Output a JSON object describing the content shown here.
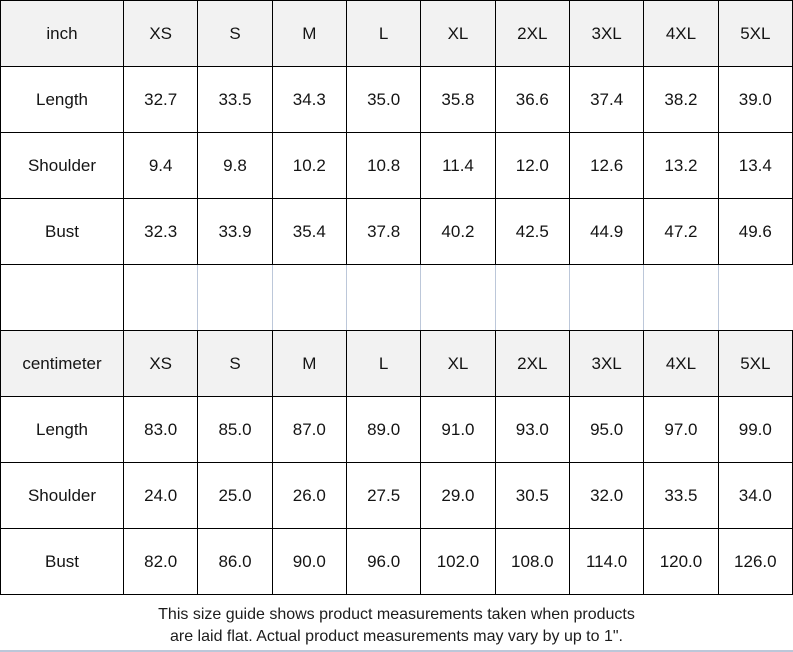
{
  "colors": {
    "header_bg": "#f2f2f2",
    "table_border": "#000000",
    "spacer_divider": "#bcc7d9",
    "page_bottom_line": "#bcc7d9",
    "text": "#141414"
  },
  "chart_data": {
    "type": "table",
    "column_headers": [
      "XS",
      "S",
      "M",
      "L",
      "XL",
      "2XL",
      "3XL",
      "4XL",
      "5XL"
    ],
    "sections": [
      {
        "unit": "inch",
        "rows": [
          {
            "label": "Length",
            "values": [
              "32.7",
              "33.5",
              "34.3",
              "35.0",
              "35.8",
              "36.6",
              "37.4",
              "38.2",
              "39.0"
            ]
          },
          {
            "label": "Shoulder",
            "values": [
              "9.4",
              "9.8",
              "10.2",
              "10.8",
              "11.4",
              "12.0",
              "12.6",
              "13.2",
              "13.4"
            ]
          },
          {
            "label": "Bust",
            "values": [
              "32.3",
              "33.9",
              "35.4",
              "37.8",
              "40.2",
              "42.5",
              "44.9",
              "47.2",
              "49.6"
            ]
          }
        ]
      },
      {
        "unit": "centimeter",
        "rows": [
          {
            "label": "Length",
            "values": [
              "83.0",
              "85.0",
              "87.0",
              "89.0",
              "91.0",
              "93.0",
              "95.0",
              "97.0",
              "99.0"
            ]
          },
          {
            "label": "Shoulder",
            "values": [
              "24.0",
              "25.0",
              "26.0",
              "27.5",
              "29.0",
              "30.5",
              "32.0",
              "33.5",
              "34.0"
            ]
          },
          {
            "label": "Bust",
            "values": [
              "82.0",
              "86.0",
              "90.0",
              "96.0",
              "102.0",
              "108.0",
              "114.0",
              "120.0",
              "126.0"
            ]
          }
        ]
      }
    ],
    "note": "This size guide shows product measurements taken when products are laid flat. Actual product measurements may vary by up to 1\"."
  },
  "footer": {
    "line1": "This size guide shows product measurements taken when products",
    "line2": "are laid flat. Actual product measurements may vary by up to 1\"."
  }
}
